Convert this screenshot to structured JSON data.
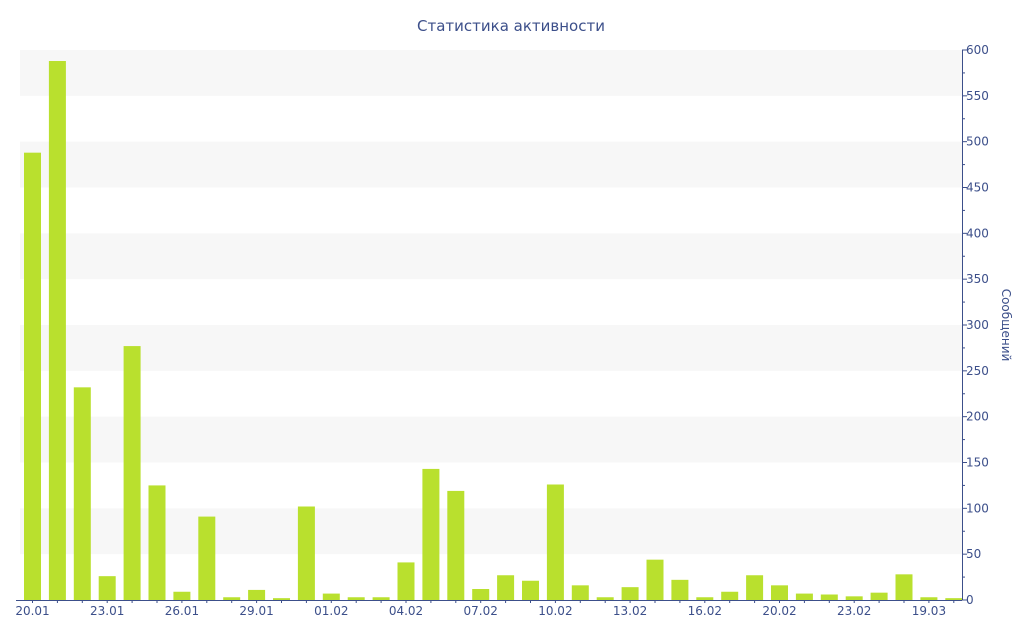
{
  "chart_data": {
    "type": "bar",
    "title": "Статистика активности",
    "xlabel": "",
    "ylabel": "Сообщений",
    "ylim": [
      0,
      600
    ],
    "y_ticks": [
      0,
      50,
      100,
      150,
      200,
      250,
      300,
      350,
      400,
      450,
      500,
      550,
      600
    ],
    "y_axis_position": "right",
    "grid": "horizontal alternating bands",
    "bar_color": "#b9e02e",
    "band_color": "#f7f7f7",
    "axis_text_color": "#3c4f8a",
    "x_tick_labels": [
      {
        "index": 0,
        "label": "20.01"
      },
      {
        "index": 3,
        "label": "23.01"
      },
      {
        "index": 6,
        "label": "26.01"
      },
      {
        "index": 9,
        "label": "29.01"
      },
      {
        "index": 12,
        "label": "01.02"
      },
      {
        "index": 15,
        "label": "04.02"
      },
      {
        "index": 18,
        "label": "07.02"
      },
      {
        "index": 21,
        "label": "10.02"
      },
      {
        "index": 24,
        "label": "13.02"
      },
      {
        "index": 27,
        "label": "16.02"
      },
      {
        "index": 30,
        "label": "20.02"
      },
      {
        "index": 33,
        "label": "23.02"
      },
      {
        "index": 36,
        "label": "19.03"
      }
    ],
    "values": [
      488,
      588,
      232,
      26,
      277,
      125,
      9,
      91,
      3,
      11,
      2,
      102,
      7,
      3,
      3,
      41,
      143,
      119,
      12,
      27,
      21,
      126,
      16,
      3,
      14,
      44,
      22,
      3,
      9,
      27,
      16,
      7,
      6,
      4,
      8,
      28,
      3,
      2
    ]
  }
}
